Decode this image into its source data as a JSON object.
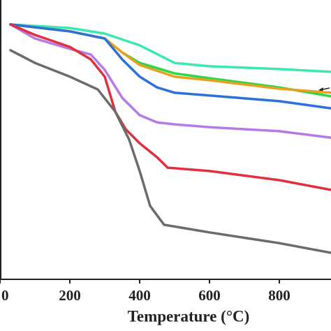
{
  "chart_data": {
    "type": "line",
    "x_label": "Temperature (°C)",
    "xlim": [
      0,
      948
    ],
    "ylim": [
      0,
      100
    ],
    "xticks": [
      0,
      200,
      400,
      600,
      800
    ],
    "series": [
      {
        "name": null,
        "color": "#3de8b0",
        "x": [
          30,
          200,
          300,
          400,
          500,
          600,
          800,
          948
        ],
        "values": [
          100,
          98.6,
          96.4,
          91.8,
          84.9,
          83.6,
          82.5,
          81.4
        ]
      },
      {
        "name": null,
        "color": "#2fd64a",
        "x": [
          30,
          200,
          300,
          350,
          400,
          500,
          600,
          800,
          948
        ],
        "values": [
          100,
          97.3,
          94.5,
          89.0,
          84.9,
          80.8,
          78.9,
          75.3,
          71.8
        ]
      },
      {
        "name": null,
        "color": "#e8a020",
        "x": [
          30,
          200,
          300,
          350,
          400,
          500,
          600,
          800,
          948
        ],
        "values": [
          100,
          97.3,
          94.5,
          89.0,
          84.1,
          79.5,
          78.1,
          74.8,
          73.2
        ]
      },
      {
        "name": null,
        "color": "#2f6fd8",
        "x": [
          30,
          200,
          300,
          350,
          400,
          450,
          500,
          600,
          800,
          948
        ],
        "values": [
          100,
          97.3,
          94.5,
          86.3,
          79.5,
          75.3,
          73.2,
          72.1,
          69.9,
          67.1
        ]
      },
      {
        "name": null,
        "color": "#b57ae6",
        "x": [
          30,
          100,
          200,
          260,
          300,
          350,
          400,
          450,
          500,
          600,
          800,
          948
        ],
        "values": [
          100,
          94.5,
          90.4,
          88.2,
          82.2,
          71.2,
          64.4,
          61.6,
          60.8,
          59.7,
          58.1,
          55.6
        ]
      },
      {
        "name": null,
        "color": "#e0303f",
        "x": [
          30,
          100,
          200,
          260,
          300,
          330,
          360,
          400,
          450,
          480,
          600,
          800,
          948
        ],
        "values": [
          100,
          95.9,
          91.2,
          86.3,
          79.5,
          65.8,
          58.9,
          53.4,
          47.9,
          43.8,
          42.5,
          38.9,
          35.1
        ]
      },
      {
        "name": null,
        "color": "#6b6b6b",
        "x": [
          30,
          100,
          200,
          280,
          330,
          370,
          400,
          430,
          470,
          600,
          800,
          948
        ],
        "values": [
          89.9,
          84.9,
          79.5,
          74.5,
          65.8,
          54.8,
          42.5,
          28.8,
          21.4,
          18.4,
          14.2,
          10.4
        ]
      }
    ]
  }
}
